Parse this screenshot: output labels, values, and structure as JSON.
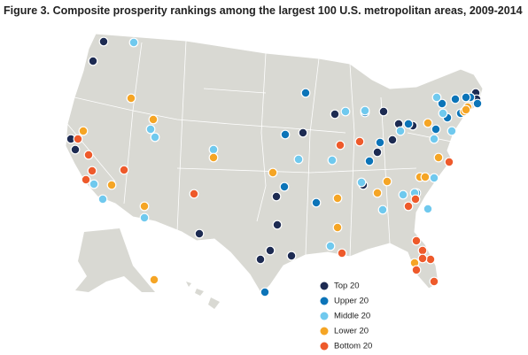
{
  "title": "Figure 3. Composite prosperity rankings among the largest 100 U.S. metropolitan areas, 2009-2014",
  "legend": [
    {
      "label": "Top 20",
      "color": "#1d2b52"
    },
    {
      "label": "Upper 20",
      "color": "#0c74b8"
    },
    {
      "label": "Middle 20",
      "color": "#70c9ee"
    },
    {
      "label": "Lower 20",
      "color": "#f5a525"
    },
    {
      "label": "Bottom 20",
      "color": "#ee5a2b"
    }
  ]
}
